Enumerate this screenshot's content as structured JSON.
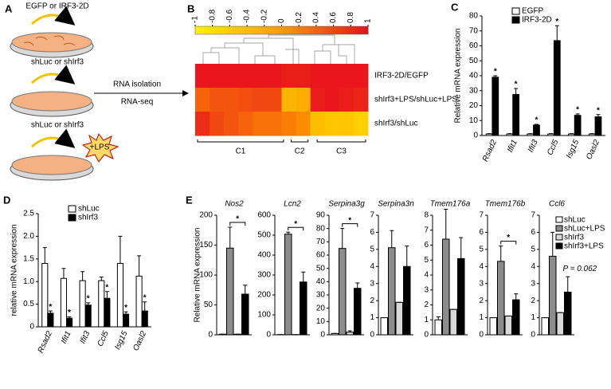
{
  "diagram": {
    "panel_label": "A",
    "steps": [
      "EGFP or IRF3-2D",
      "shLuc or shIrf3",
      "shLuc or shIrf3"
    ],
    "stimulus": "+LPS",
    "arrow_labels": [
      "RNA isolation",
      "RNA-seq"
    ]
  },
  "chart_data": [
    {
      "type": "heatmap",
      "panel_label": "B",
      "colormap": [
        "#fff200",
        "#ff9a00",
        "#e8101c"
      ],
      "colorbar_ticks": [
        -1,
        -0.8,
        -0.6,
        -0.4,
        -0.2,
        0,
        0.2,
        0.4,
        0.6,
        0.8,
        1
      ],
      "clim": [
        -1,
        1
      ],
      "rows": [
        {
          "name": "IRF3-2D/EGFP",
          "values": [
            0.95,
            0.95,
            0.95,
            0.95,
            0.95,
            0.95,
            0.9,
            0.9,
            0.95,
            0.95,
            0.95,
            0.95
          ]
        },
        {
          "name": "shIrf3+LPS/shLuc+LPS",
          "values": [
            0.4,
            0.5,
            0.5,
            0.55,
            0.6,
            0.6,
            -0.3,
            -0.2,
            0.9,
            0.95,
            0.9,
            0.85
          ]
        },
        {
          "name": "shIrf3/shLuc",
          "values": [
            0.8,
            0.6,
            0.5,
            0.4,
            0.3,
            0.3,
            0.2,
            0.1,
            -0.4,
            -0.5,
            -0.5,
            -0.6
          ]
        }
      ],
      "clusters": [
        "C1",
        "C2",
        "C3"
      ]
    },
    {
      "type": "bar",
      "panel_label": "C",
      "ylabel": "Relative mRNA expression",
      "categories": [
        "Rsad2",
        "Ifit1",
        "Ifit3",
        "Ccl5",
        "Isg15",
        "Oasl2"
      ],
      "series": [
        {
          "name": "EGFP",
          "color": "#ffffff",
          "values": [
            1,
            1,
            1,
            1,
            1,
            1
          ],
          "errors": [
            0.3,
            0.3,
            0.3,
            0.3,
            0.3,
            0.3
          ]
        },
        {
          "name": "IRF3-2D",
          "color": "#000000",
          "values": [
            39,
            27.5,
            7,
            63.5,
            13.5,
            12.5
          ],
          "errors": [
            1,
            4,
            0.5,
            10,
            1,
            1.5
          ]
        }
      ],
      "significance": [
        "*",
        "*",
        "*",
        "*",
        "*",
        "*"
      ],
      "ylim": [
        0,
        80
      ],
      "yticks": [
        0,
        10,
        20,
        30,
        40,
        50,
        60,
        70,
        80
      ],
      "legend": "upper left"
    },
    {
      "type": "bar",
      "panel_label": "D",
      "ylabel": "relative mRNA expression",
      "categories": [
        "Rsad2",
        "Ifit1",
        "Ifit3",
        "Ccl5",
        "Isg15",
        "Oasl2"
      ],
      "series": [
        {
          "name": "shLuc",
          "color": "#ffffff",
          "values": [
            1.4,
            1.07,
            1.02,
            1.02,
            1.4,
            1.12
          ],
          "errors": [
            0.35,
            0.22,
            0.2,
            0.08,
            0.6,
            0.45
          ]
        },
        {
          "name": "shIrf3",
          "color": "#000000",
          "values": [
            0.3,
            0.19,
            0.48,
            0.63,
            0.28,
            0.35
          ],
          "errors": [
            0.05,
            0.03,
            0.05,
            0.15,
            0.05,
            0.2
          ]
        }
      ],
      "significance": [
        "*",
        "*",
        "*",
        "*",
        "*",
        "*"
      ],
      "ylim": [
        0,
        2.5
      ],
      "yticks": [
        0,
        0.5,
        {
          "value": 1,
          "label": "1.0"
        },
        1.5,
        {
          "value": 2,
          "label": "2.0"
        },
        2.5
      ],
      "legend": "upper left"
    },
    {
      "type": "bar-panels",
      "panel_label": "E",
      "ylabel": "Relative mRNA expression",
      "series_names": [
        "shLuc",
        "shLuc+LPS",
        "shIrf3",
        "shIrf3+LPS"
      ],
      "colors": [
        "#ffffff",
        "#8c8c8c",
        "#d9d9d9",
        "#000000"
      ],
      "legend": "upper right",
      "panels": [
        {
          "title": "Nos2",
          "values": [
            1,
            145,
            1,
            68
          ],
          "errors": [
            0,
            35,
            0,
            15
          ],
          "ylim": [
            0,
            200
          ],
          "yticks": [
            0,
            50,
            100,
            150,
            200
          ],
          "significance": "*"
        },
        {
          "title": "Lcn2",
          "values": [
            1,
            505,
            1,
            265
          ],
          "errors": [
            0,
            10,
            0,
            50
          ],
          "ylim": [
            0,
            600
          ],
          "yticks": [
            0,
            100,
            200,
            300,
            400,
            500,
            600
          ],
          "significance": "*"
        },
        {
          "title": "Serpina3g",
          "values": [
            1,
            65,
            2,
            35
          ],
          "errors": [
            0,
            15,
            1,
            4
          ],
          "ylim": [
            0,
            90
          ],
          "yticks": [
            0,
            10,
            20,
            30,
            40,
            50,
            60,
            70,
            80,
            90
          ],
          "significance": "*"
        },
        {
          "title": "Serpina3n",
          "values": [
            1,
            5.1,
            1.9,
            4
          ],
          "errors": [
            0,
            1,
            0,
            1.2
          ],
          "ylim": [
            0,
            7
          ],
          "yticks": [
            0,
            1,
            2,
            3,
            4,
            5,
            6,
            7
          ]
        },
        {
          "title": "Tmem176a",
          "values": [
            1,
            6.4,
            1.7,
            5.1
          ],
          "errors": [
            0.2,
            2,
            0,
            1.4
          ],
          "ylim": [
            0,
            8
          ],
          "yticks": [
            0,
            1,
            2,
            3,
            4,
            5,
            6,
            7,
            8
          ]
        },
        {
          "title": "Tmem176b",
          "values": [
            1,
            4.3,
            1.1,
            2.05
          ],
          "errors": [
            0,
            0.9,
            0,
            0.35
          ],
          "ylim": [
            0,
            7
          ],
          "yticks": [
            0,
            1,
            2,
            3,
            4,
            5,
            6,
            7
          ],
          "significance": "*"
        },
        {
          "title": "Ccl6",
          "values": [
            1,
            4.6,
            1.3,
            2.5
          ],
          "errors": [
            0,
            1.4,
            0,
            0.9
          ],
          "ylim": [
            0,
            7
          ],
          "yticks": [
            0,
            1,
            2,
            3,
            4,
            5,
            6,
            7
          ],
          "annotation": "P = 0.062"
        }
      ]
    }
  ]
}
